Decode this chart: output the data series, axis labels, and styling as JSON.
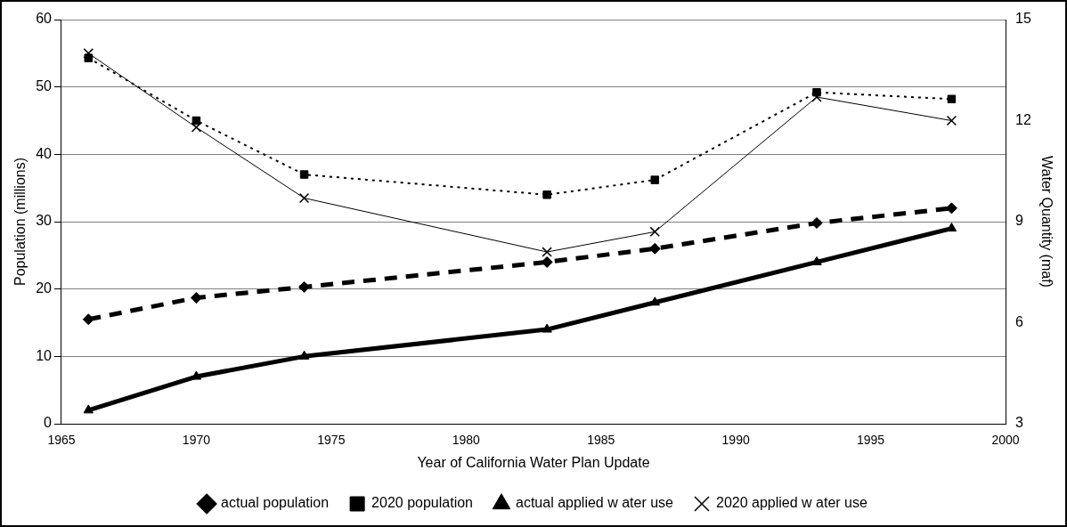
{
  "chart_data": {
    "type": "line",
    "xlabel": "Year of California Water Plan Update",
    "ylabel": "Population (millions)",
    "y2label": "Water Quantity (maf)",
    "x": [
      1966,
      1970,
      1974,
      1983,
      1987,
      1993,
      1998
    ],
    "series": [
      {
        "name": "actual population",
        "color": "#000000",
        "marker": "diamond",
        "line_style": "dashed",
        "values": [
          15.5,
          18.7,
          20.3,
          24,
          26,
          29.8,
          32
        ]
      },
      {
        "name": "2020 population",
        "color": "#000000",
        "marker": "square",
        "line_style": "dotted",
        "values": [
          54.3,
          45,
          37,
          34,
          36.2,
          49.2,
          48.2
        ]
      },
      {
        "name": "actual applied w ater use",
        "color": "#000000",
        "marker": "triangle",
        "line_style": "solid",
        "axis": "y2",
        "values": [
          3.4,
          4.4,
          5.0,
          5.8,
          6.6,
          7.8,
          8.8
        ]
      },
      {
        "name": "2020 applied w ater use",
        "color": "#000000",
        "marker": "cross",
        "line_style": "solid",
        "axis": "y2",
        "values": [
          14.0,
          11.8,
          9.7,
          8.1,
          8.7,
          12.7,
          12.0
        ]
      }
    ],
    "xlim": [
      1965,
      2000
    ],
    "xticks": [
      1965,
      1970,
      1975,
      1980,
      1985,
      1990,
      1995,
      2000
    ],
    "ylim": [
      0,
      60
    ],
    "yticks": [
      0,
      10,
      20,
      30,
      40,
      50,
      60
    ],
    "y2lim": [
      3,
      15
    ],
    "y2ticks": [
      3,
      6,
      9,
      12,
      15
    ],
    "grid": "y",
    "legend": "bottom"
  }
}
